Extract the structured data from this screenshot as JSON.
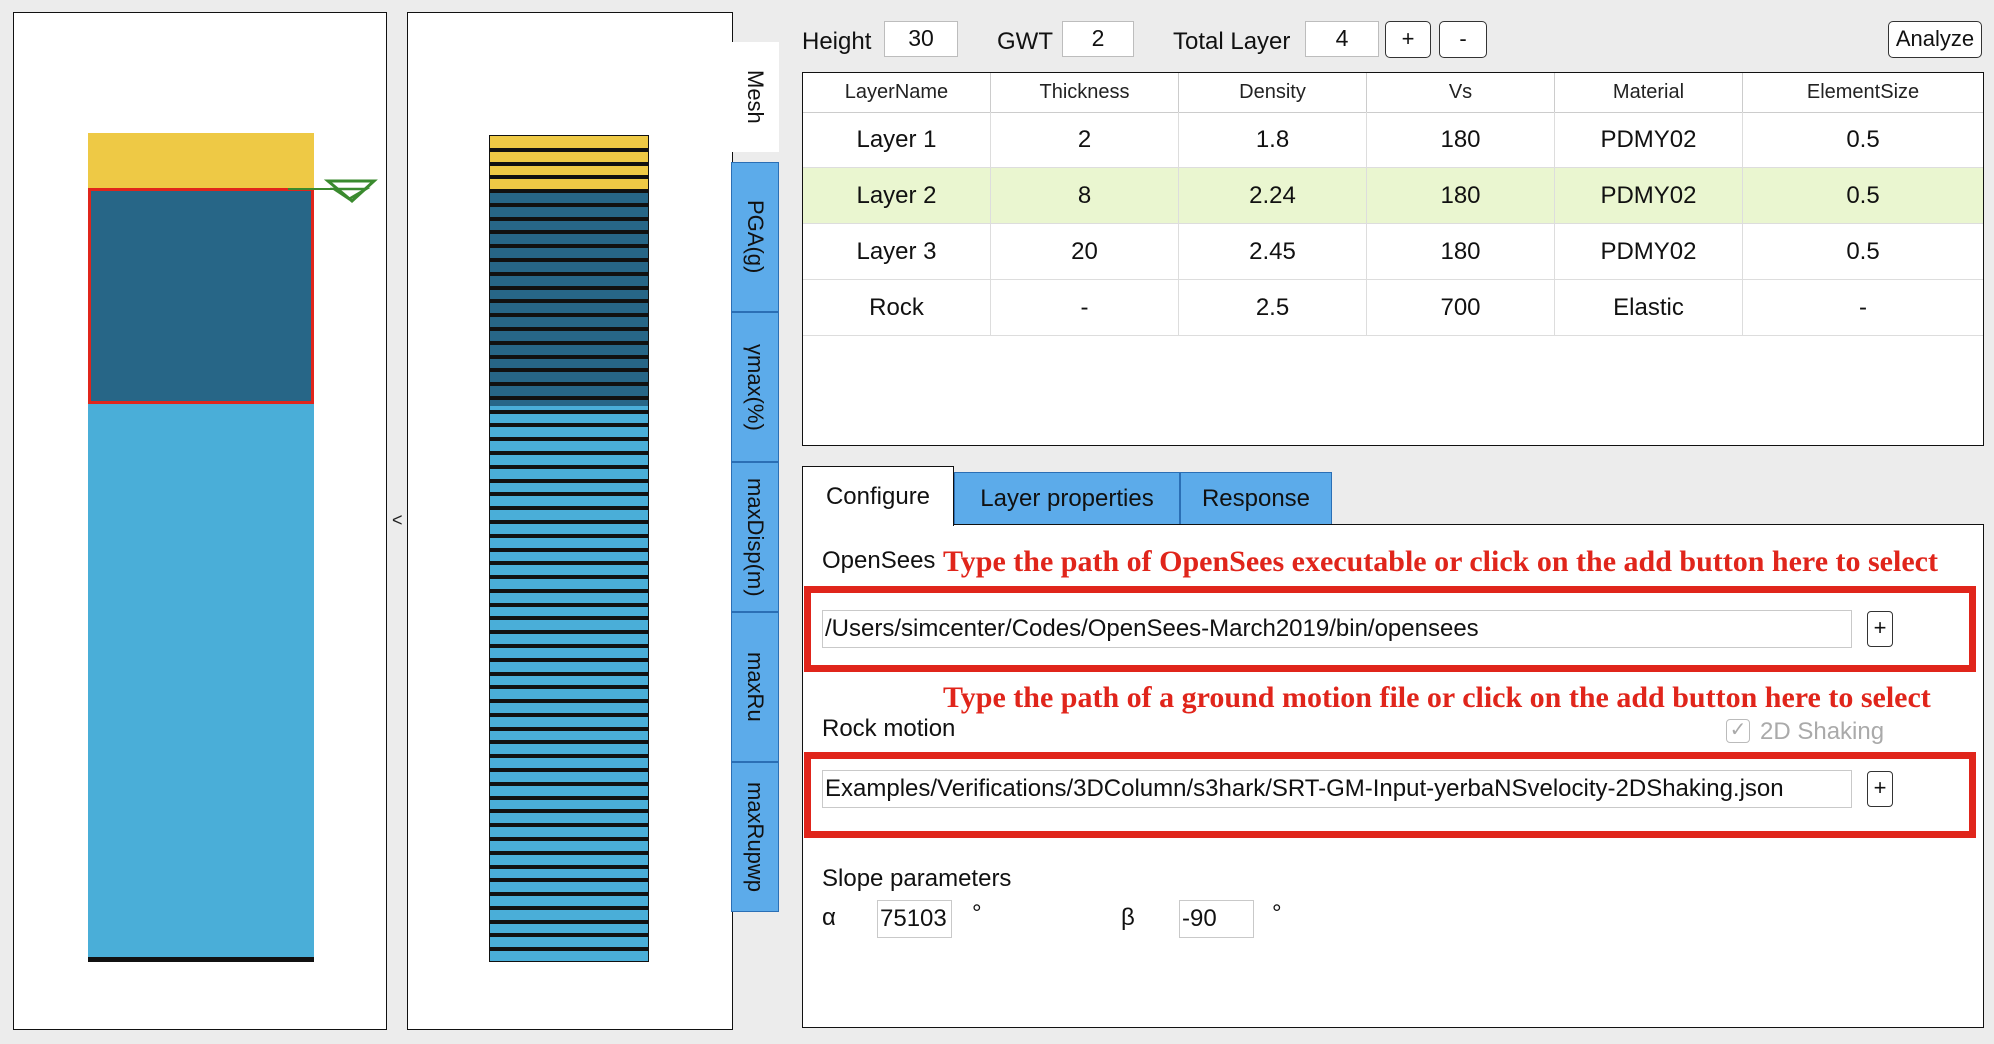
{
  "colors": {
    "top_layer": "#eec945",
    "layer2": "#276687",
    "layer3": "#4aaed8",
    "gwt_marker": "#3a8a2e",
    "selected_outline": "#e0251b",
    "tab_blue": "#5cabea",
    "selected_row": "#eaf6d0",
    "annotation_red": "#e0251b"
  },
  "profile": {
    "collapse_glyph": "<"
  },
  "view_tabs": [
    "Mesh",
    "PGA(g)",
    "γmax(%)",
    "maxDisp(m)",
    "maxRu",
    "maxRupwp"
  ],
  "header": {
    "height_label": "Height",
    "height_value": "30",
    "gwt_label": "GWT",
    "gwt_value": "2",
    "total_layer_label": "Total Layer",
    "total_layer_value": "4",
    "add_label": "+",
    "remove_label": "-",
    "analyze_label": "Analyze"
  },
  "layer_table": {
    "columns": [
      "LayerName",
      "Thickness",
      "Density",
      "Vs",
      "Material",
      "ElementSize"
    ],
    "rows": [
      [
        "Layer 1",
        "2",
        "1.8",
        "180",
        "PDMY02",
        "0.5"
      ],
      [
        "Layer 2",
        "8",
        "2.24",
        "180",
        "PDMY02",
        "0.5"
      ],
      [
        "Layer 3",
        "20",
        "2.45",
        "180",
        "PDMY02",
        "0.5"
      ],
      [
        "Rock",
        "-",
        "2.5",
        "700",
        "Elastic",
        "-"
      ]
    ],
    "selected_row": "Layer 2"
  },
  "tabs": {
    "configure": "Configure",
    "layer_properties": "Layer properties",
    "response": "Response"
  },
  "config": {
    "opensees_label": "OpenSees",
    "opensees_annotation": "Type the path of OpenSees executable or click on the add button here to select",
    "opensees_path": "/Users/simcenter/Codes/OpenSees-March2019/bin/opensees",
    "browse_label": "+",
    "rock_annotation": "Type the path of a ground motion file or click on the add button here to select",
    "rock_label": "Rock motion",
    "shaking_label": "2D Shaking",
    "shaking_checked": true,
    "rock_path": "Examples/Verifications/3DColumn/s3hark/SRT-GM-Input-yerbaNSvelocity-2DShaking.json",
    "slope_label": "Slope parameters",
    "alpha_symbol": "α",
    "alpha_value": "75103",
    "beta_symbol": "β",
    "beta_value": "-90",
    "degree_symbol": "°"
  }
}
